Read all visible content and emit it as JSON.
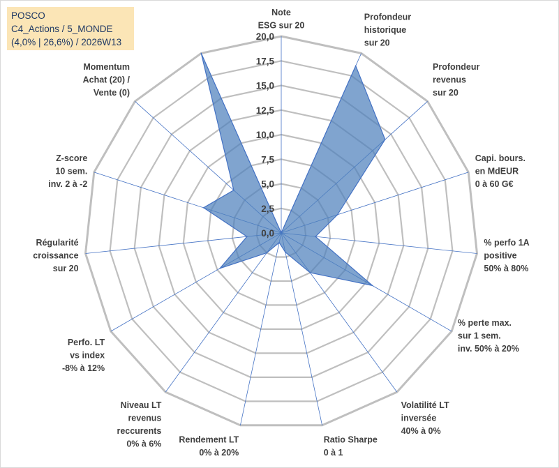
{
  "title": {
    "line1": "POSCO",
    "line2": "C4_Actions / 5_MONDE",
    "line3": "(4,0% | 26,6%) / 2026W13"
  },
  "colors": {
    "fill": "#4f81bd",
    "stroke": "#4472c4",
    "grid": "#bfbfbf",
    "spoke": "#4472c4",
    "title_bg": "#fbe5b6",
    "title_text": "#1f3864"
  },
  "chart_data": {
    "type": "radar",
    "title": "POSCO",
    "rmin": 0,
    "rmax": 20,
    "tick_step": 2.5,
    "tick_labels": [
      "0,0",
      "2,5",
      "5,0",
      "7,5",
      "10,0",
      "12,5",
      "15,0",
      "17,5",
      "20,0"
    ],
    "axes": [
      {
        "label": [
          "Note",
          "ESG sur 20"
        ],
        "value": 0
      },
      {
        "label": [
          "Profondeur",
          "historique",
          "sur 20"
        ],
        "value": 18.6
      },
      {
        "label": [
          "Profondeur",
          "revenus",
          "sur 20"
        ],
        "value": 14.2
      },
      {
        "label": [
          "Capi. bours.",
          "en MdEUR",
          "0 à 60 G€"
        ],
        "value": 6.0
      },
      {
        "label": [
          "% perfo 1A",
          "positive",
          "50% à 80%"
        ],
        "value": 3.5
      },
      {
        "label": [
          "% perte max.",
          "sur 1 sem.",
          "inv. 50% à 20%"
        ],
        "value": 10.7
      },
      {
        "label": [
          "Volatilité LT",
          "inversée",
          "40% à 0%"
        ],
        "value": 5.0
      },
      {
        "label": [
          "Ratio Sharpe",
          "0 à 1"
        ],
        "value": 2.0
      },
      {
        "label": [
          "Rendement LT",
          "0% à 20%"
        ],
        "value": 1.0
      },
      {
        "label": [
          "Niveau LT",
          "revenus",
          "reccurents",
          "0% à 6%"
        ],
        "value": 2.5
      },
      {
        "label": [
          "Perfo. LT",
          "vs index",
          "-8% à 12%"
        ],
        "value": 7.2
      },
      {
        "label": [
          "Régularité",
          "croissance",
          "sur 20"
        ],
        "value": 3.5
      },
      {
        "label": [
          "Z-score",
          "10 sem.",
          "inv. 2 à -2"
        ],
        "value": 8.3
      },
      {
        "label": [
          "Momentum",
          "Achat (20) /",
          "Vente (0)"
        ],
        "value": 6.5
      },
      {
        "label": [],
        "value": 20
      }
    ]
  }
}
